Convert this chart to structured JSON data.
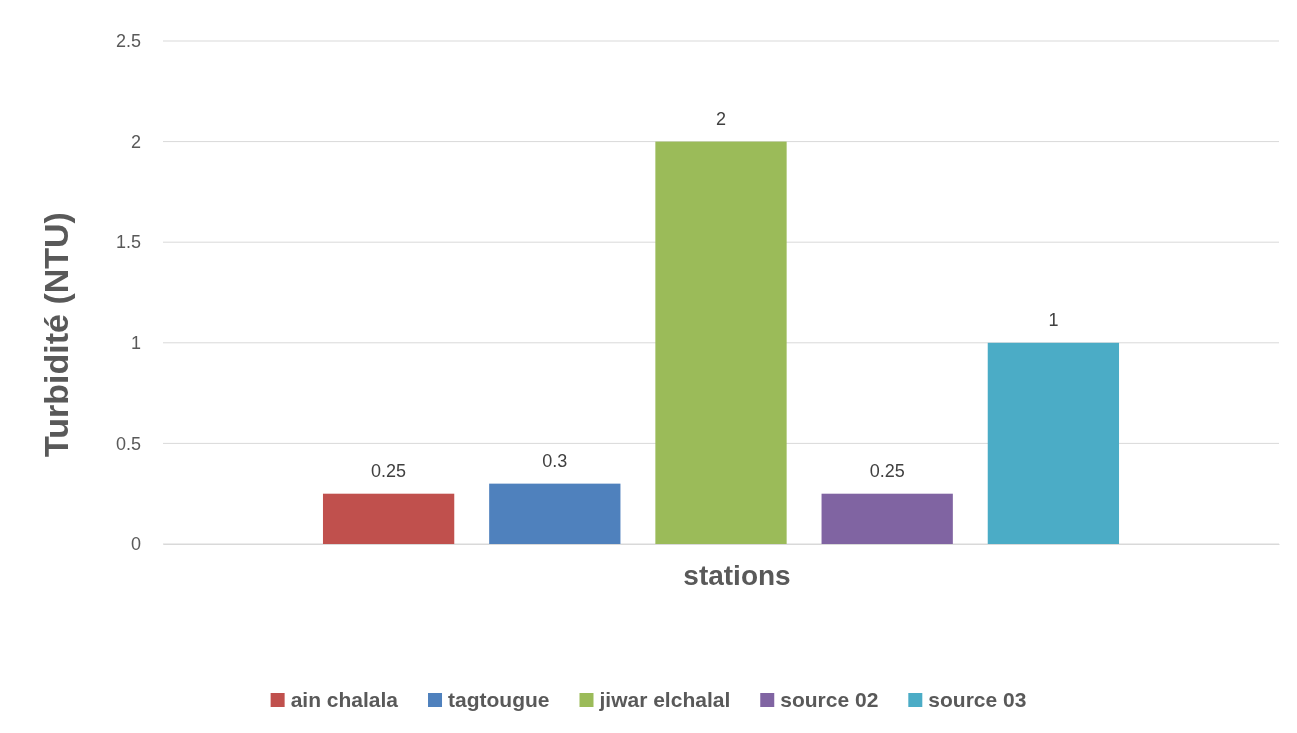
{
  "chart_data": {
    "type": "bar",
    "xlabel": "stations",
    "ylabel": "Turbidité (NTU)",
    "categories": [
      null
    ],
    "series": [
      {
        "name": "ain chalala",
        "color": "#c0504d",
        "values": [
          0.25
        ]
      },
      {
        "name": "tagtougue",
        "color": "#4f81bd",
        "values": [
          0.3
        ]
      },
      {
        "name": "jiwar elchalal",
        "color": "#9bbb59",
        "values": [
          2
        ]
      },
      {
        "name": "source 02",
        "color": "#8064a2",
        "values": [
          0.25
        ]
      },
      {
        "name": "source 03",
        "color": "#4bacc6",
        "values": [
          1
        ]
      }
    ],
    "ylim": [
      0,
      2.5
    ],
    "yticks": [
      0,
      0.5,
      1,
      1.5,
      2,
      2.5
    ],
    "grid": "y",
    "legend": "bottom",
    "data_labels": true
  }
}
